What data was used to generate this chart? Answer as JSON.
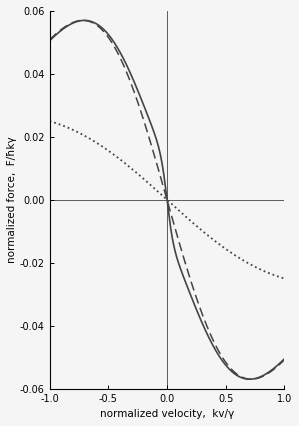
{
  "xlim": [
    -1.0,
    1.0
  ],
  "ylim": [
    -0.06,
    0.06
  ],
  "xlabel": "normalized velocity,  kv/γ",
  "ylabel": "normalized force,  F/ħkγ",
  "xticks": [
    -1.0,
    -0.5,
    0.0,
    0.5,
    1.0
  ],
  "yticks": [
    -0.06,
    -0.04,
    -0.02,
    0.0,
    0.02,
    0.04,
    0.06
  ],
  "line_color": "#444444",
  "bg_color": "#f5f5f5",
  "figsize": [
    2.99,
    4.26
  ],
  "dpi": 100,
  "dashed_max": 0.057,
  "dotted_max": 0.025,
  "solid_max": 0.057,
  "delta": -0.5,
  "gamma": 1.0
}
